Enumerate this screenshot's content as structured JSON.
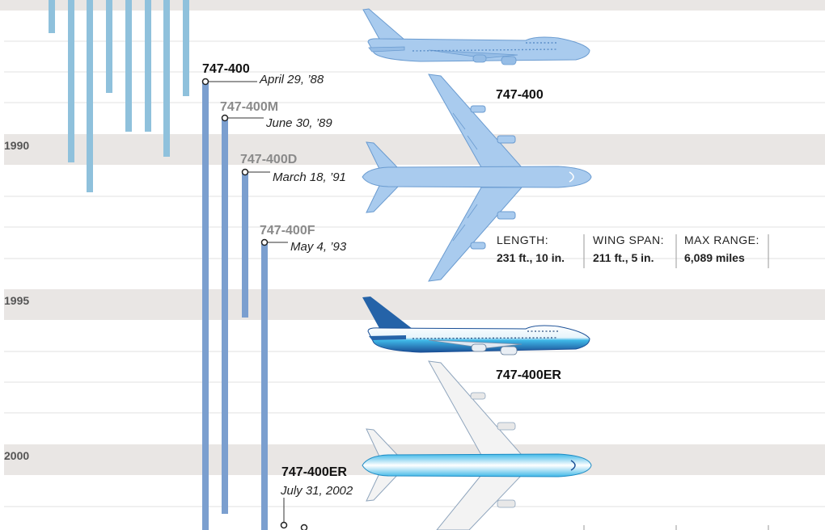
{
  "timeline": {
    "years": [
      "1990",
      "1995",
      "2000"
    ],
    "variants": [
      {
        "name": "747-400",
        "date": "April 29, ’88",
        "emphasis": true
      },
      {
        "name": "747-400M",
        "date": "June 30, ’89",
        "emphasis": false
      },
      {
        "name": "747-400D",
        "date": "March 18, ’91",
        "emphasis": false
      },
      {
        "name": "747-400F",
        "date": "May 4, ’93",
        "emphasis": false
      },
      {
        "name": "747-400ER",
        "date": "July 31, 2002",
        "emphasis": true
      }
    ]
  },
  "planes": [
    {
      "title": "747-400",
      "specs": [
        {
          "label": "LENGTH:",
          "value": "231 ft., 10 in."
        },
        {
          "label": "WING SPAN:",
          "value": "211 ft., 5 in."
        },
        {
          "label": "MAX RANGE:",
          "value": "6,089 miles"
        }
      ]
    },
    {
      "title": "747-400ER"
    }
  ],
  "colors": {
    "band": "#e9e6e4",
    "gridline": "#dcdcdc",
    "old_bar": "#8fc1dc",
    "new_bar": "#7b9fcf",
    "plane_light": "#a9cbee",
    "plane_light_edge": "#6a9bd0",
    "plane_dark": "#2563a8",
    "plane_cyan": "#3fb8e8",
    "label_gray": "#8a8a8a"
  }
}
